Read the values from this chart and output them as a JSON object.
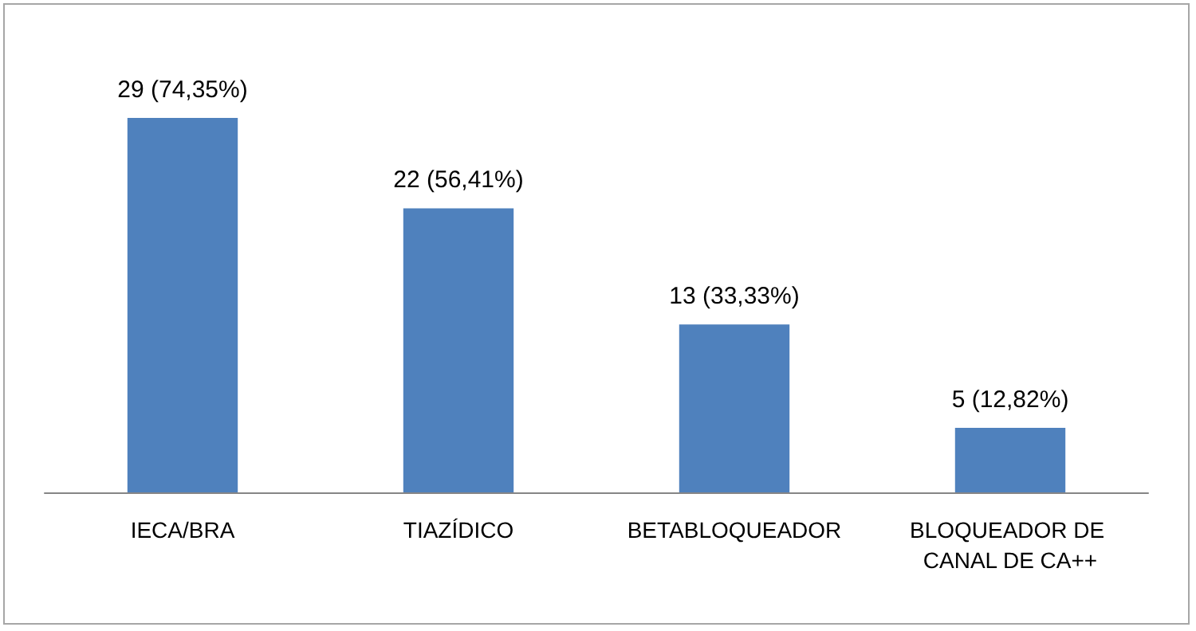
{
  "chart_data": {
    "type": "bar",
    "categories": [
      "IECA/BRA",
      "TIAZÍDICO",
      "BETABLOQUEADOR",
      "BLOQUEADOR DE CANAL DE CA++"
    ],
    "values": [
      29,
      22,
      13,
      5
    ],
    "value_labels": [
      "29 (74,35%)",
      "22 (56,41%)",
      "13 (33,33%)",
      "5 (12,82%)"
    ],
    "color": "#4f81bd"
  }
}
